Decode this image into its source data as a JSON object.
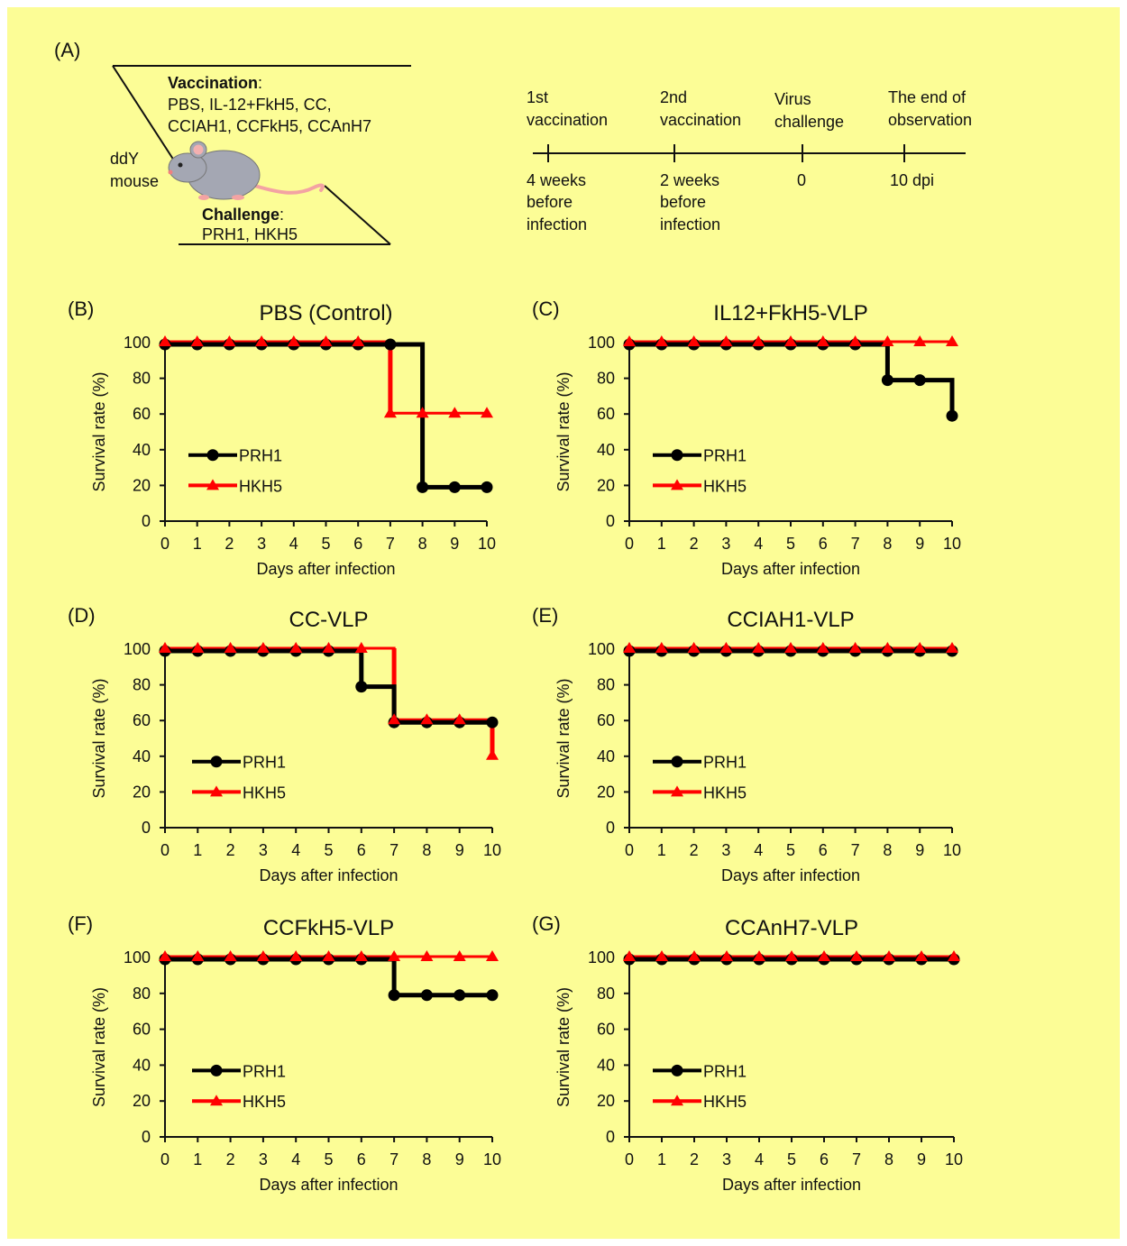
{
  "panel_a": {
    "label": "(A)",
    "vaccination_label": "Vaccination",
    "vaccination_colon": ":",
    "vaccination_line1": "PBS, IL-12+FkH5, CC,",
    "vaccination_line2": "CCIAH1, CCFkH5, CCAnH7",
    "mouse_line1": "ddY",
    "mouse_line2": "mouse",
    "challenge_label": "Challenge",
    "challenge_colon": ":",
    "challenge_viruses": "PRH1, HKH5",
    "timeline": [
      {
        "top": [
          "1st",
          "vaccination"
        ],
        "bottom": [
          "4 weeks",
          "before",
          "infection"
        ]
      },
      {
        "top": [
          "2nd",
          "vaccination"
        ],
        "bottom": [
          "2 weeks",
          "before",
          "infection"
        ]
      },
      {
        "top": [
          "Virus",
          "challenge"
        ],
        "bottom": [
          "0"
        ]
      },
      {
        "top": [
          "The end of",
          "observation"
        ],
        "bottom": [
          "10 dpi"
        ]
      }
    ]
  },
  "colors": {
    "background": "#fcfd96",
    "PRH1": "#000000",
    "HKH5": "#ff0000"
  },
  "chart_data": [
    {
      "label": "(B)",
      "title": "PBS (Control)",
      "type": "line",
      "xlabel": "Days after infection",
      "ylabel": "Survival rate (%)",
      "xlim": [
        0,
        10
      ],
      "ylim": [
        0,
        100
      ],
      "xticks": [
        0,
        1,
        2,
        3,
        4,
        5,
        6,
        7,
        8,
        9,
        10
      ],
      "yticks": [
        0,
        20,
        40,
        60,
        80,
        100
      ],
      "legend_position": "lower-left",
      "series": [
        {
          "name": "PRH1",
          "marker": "circle",
          "x": [
            0,
            1,
            2,
            3,
            4,
            5,
            6,
            7,
            8,
            9,
            10
          ],
          "y": [
            100,
            100,
            100,
            100,
            100,
            100,
            100,
            100,
            20,
            20,
            20
          ]
        },
        {
          "name": "HKH5",
          "marker": "triangle",
          "x": [
            0,
            1,
            2,
            3,
            4,
            5,
            6,
            7,
            8,
            9,
            10
          ],
          "y": [
            100,
            100,
            100,
            100,
            100,
            100,
            100,
            60,
            60,
            60,
            60
          ]
        }
      ]
    },
    {
      "label": "(C)",
      "title": "IL12+FkH5-VLP",
      "type": "line",
      "xlabel": "Days after infection",
      "ylabel": "Survival rate (%)",
      "xlim": [
        0,
        10
      ],
      "ylim": [
        0,
        100
      ],
      "xticks": [
        0,
        1,
        2,
        3,
        4,
        5,
        6,
        7,
        8,
        9,
        10
      ],
      "yticks": [
        0,
        20,
        40,
        60,
        80,
        100
      ],
      "legend_position": "lower-left",
      "series": [
        {
          "name": "PRH1",
          "marker": "circle",
          "x": [
            0,
            1,
            2,
            3,
            4,
            5,
            6,
            7,
            8,
            9,
            10
          ],
          "y": [
            100,
            100,
            100,
            100,
            100,
            100,
            100,
            100,
            80,
            80,
            60
          ]
        },
        {
          "name": "HKH5",
          "marker": "triangle",
          "x": [
            0,
            1,
            2,
            3,
            4,
            5,
            6,
            7,
            8,
            9,
            10
          ],
          "y": [
            100,
            100,
            100,
            100,
            100,
            100,
            100,
            100,
            100,
            100,
            100
          ]
        }
      ]
    },
    {
      "label": "(D)",
      "title": "CC-VLP",
      "type": "line",
      "xlabel": "Days after infection",
      "ylabel": "Survival rate (%)",
      "xlim": [
        0,
        10
      ],
      "ylim": [
        0,
        100
      ],
      "xticks": [
        0,
        1,
        2,
        3,
        4,
        5,
        6,
        7,
        8,
        9,
        10
      ],
      "yticks": [
        0,
        20,
        40,
        60,
        80,
        100
      ],
      "legend_position": "lower-left",
      "series": [
        {
          "name": "PRH1",
          "marker": "circle",
          "x": [
            0,
            1,
            2,
            3,
            4,
            5,
            6,
            7,
            8,
            9,
            10
          ],
          "y": [
            100,
            100,
            100,
            100,
            100,
            100,
            80,
            60,
            60,
            60,
            60
          ]
        },
        {
          "name": "HKH5",
          "marker": "triangle",
          "x": [
            0,
            1,
            2,
            3,
            4,
            5,
            6,
            7,
            8,
            9,
            10
          ],
          "y": [
            100,
            100,
            100,
            100,
            100,
            100,
            100,
            60,
            60,
            60,
            40
          ]
        }
      ]
    },
    {
      "label": "(E)",
      "title": "CCIAH1-VLP",
      "type": "line",
      "xlabel": "Days after infection",
      "ylabel": "Survival rate (%)",
      "xlim": [
        0,
        10
      ],
      "ylim": [
        0,
        100
      ],
      "xticks": [
        0,
        1,
        2,
        3,
        4,
        5,
        6,
        7,
        8,
        9,
        10
      ],
      "yticks": [
        0,
        20,
        40,
        60,
        80,
        100
      ],
      "legend_position": "lower-left",
      "series": [
        {
          "name": "PRH1",
          "marker": "circle",
          "x": [
            0,
            1,
            2,
            3,
            4,
            5,
            6,
            7,
            8,
            9,
            10
          ],
          "y": [
            100,
            100,
            100,
            100,
            100,
            100,
            100,
            100,
            100,
            100,
            100
          ]
        },
        {
          "name": "HKH5",
          "marker": "triangle",
          "x": [
            0,
            1,
            2,
            3,
            4,
            5,
            6,
            7,
            8,
            9,
            10
          ],
          "y": [
            100,
            100,
            100,
            100,
            100,
            100,
            100,
            100,
            100,
            100,
            100
          ]
        }
      ]
    },
    {
      "label": "(F)",
      "title": "CCFkH5-VLP",
      "type": "line",
      "xlabel": "Days after infection",
      "ylabel": "Survival rate (%)",
      "xlim": [
        0,
        10
      ],
      "ylim": [
        0,
        100
      ],
      "xticks": [
        0,
        1,
        2,
        3,
        4,
        5,
        6,
        7,
        8,
        9,
        10
      ],
      "yticks": [
        0,
        20,
        40,
        60,
        80,
        100
      ],
      "legend_position": "lower-left",
      "series": [
        {
          "name": "PRH1",
          "marker": "circle",
          "x": [
            0,
            1,
            2,
            3,
            4,
            5,
            6,
            7,
            8,
            9,
            10
          ],
          "y": [
            100,
            100,
            100,
            100,
            100,
            100,
            100,
            80,
            80,
            80,
            80
          ]
        },
        {
          "name": "HKH5",
          "marker": "triangle",
          "x": [
            0,
            1,
            2,
            3,
            4,
            5,
            6,
            7,
            8,
            9,
            10
          ],
          "y": [
            100,
            100,
            100,
            100,
            100,
            100,
            100,
            100,
            100,
            100,
            100
          ]
        }
      ]
    },
    {
      "label": "(G)",
      "title": "CCAnH7-VLP",
      "type": "line",
      "xlabel": "Days after infection",
      "ylabel": "Survival rate (%)",
      "xlim": [
        0,
        10
      ],
      "ylim": [
        0,
        100
      ],
      "xticks": [
        0,
        1,
        2,
        3,
        4,
        5,
        6,
        7,
        8,
        9,
        10
      ],
      "yticks": [
        0,
        20,
        40,
        60,
        80,
        100
      ],
      "legend_position": "lower-left",
      "series": [
        {
          "name": "PRH1",
          "marker": "circle",
          "x": [
            0,
            1,
            2,
            3,
            4,
            5,
            6,
            7,
            8,
            9,
            10
          ],
          "y": [
            100,
            100,
            100,
            100,
            100,
            100,
            100,
            100,
            100,
            100,
            100
          ]
        },
        {
          "name": "HKH5",
          "marker": "triangle",
          "x": [
            0,
            1,
            2,
            3,
            4,
            5,
            6,
            7,
            8,
            9,
            10
          ],
          "y": [
            100,
            100,
            100,
            100,
            100,
            100,
            100,
            100,
            100,
            100,
            100
          ]
        }
      ]
    }
  ]
}
